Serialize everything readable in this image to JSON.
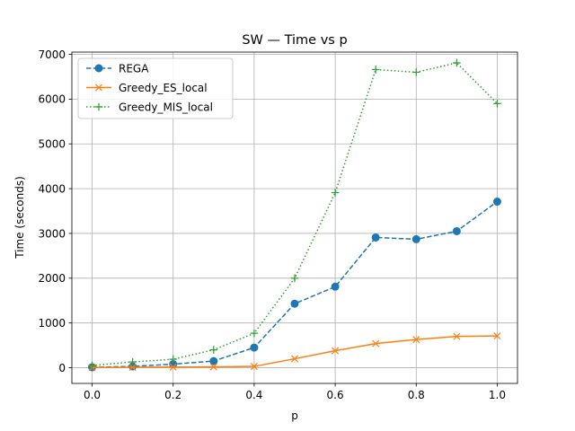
{
  "chart_data": {
    "type": "line",
    "title": "SW — Time vs p",
    "xlabel": "p",
    "ylabel": "Time (seconds)",
    "xlim": [
      -0.05,
      1.05
    ],
    "ylim": [
      -350,
      7050
    ],
    "xticks": [
      0.0,
      0.2,
      0.4,
      0.6,
      0.8,
      1.0
    ],
    "xtick_labels": [
      "0.0",
      "0.2",
      "0.4",
      "0.6",
      "0.8",
      "1.0"
    ],
    "yticks": [
      0,
      1000,
      2000,
      3000,
      4000,
      5000,
      6000,
      7000
    ],
    "ytick_labels": [
      "0",
      "1000",
      "2000",
      "3000",
      "4000",
      "5000",
      "6000",
      "7000"
    ],
    "grid": true,
    "legend_position": "top-left",
    "x": [
      0.0,
      0.1,
      0.2,
      0.3,
      0.4,
      0.5,
      0.6,
      0.7,
      0.8,
      0.9,
      1.0
    ],
    "series": [
      {
        "name": "REGA",
        "color": "#1f77b4",
        "marker": "circle",
        "line_style": "dashed",
        "values": [
          10,
          30,
          80,
          150,
          450,
          1430,
          1810,
          2910,
          2870,
          3050,
          3710
        ]
      },
      {
        "name": "Greedy_ES_local",
        "color": "#ff7f0e",
        "marker": "x",
        "line_style": "solid",
        "values": [
          5,
          10,
          15,
          20,
          30,
          200,
          380,
          540,
          630,
          700,
          710
        ]
      },
      {
        "name": "Greedy_MIS_local",
        "color": "#2ca02c",
        "marker": "plus",
        "line_style": "dotted",
        "values": [
          50,
          130,
          190,
          400,
          770,
          2000,
          3910,
          6660,
          6600,
          6810,
          5900
        ]
      }
    ]
  }
}
